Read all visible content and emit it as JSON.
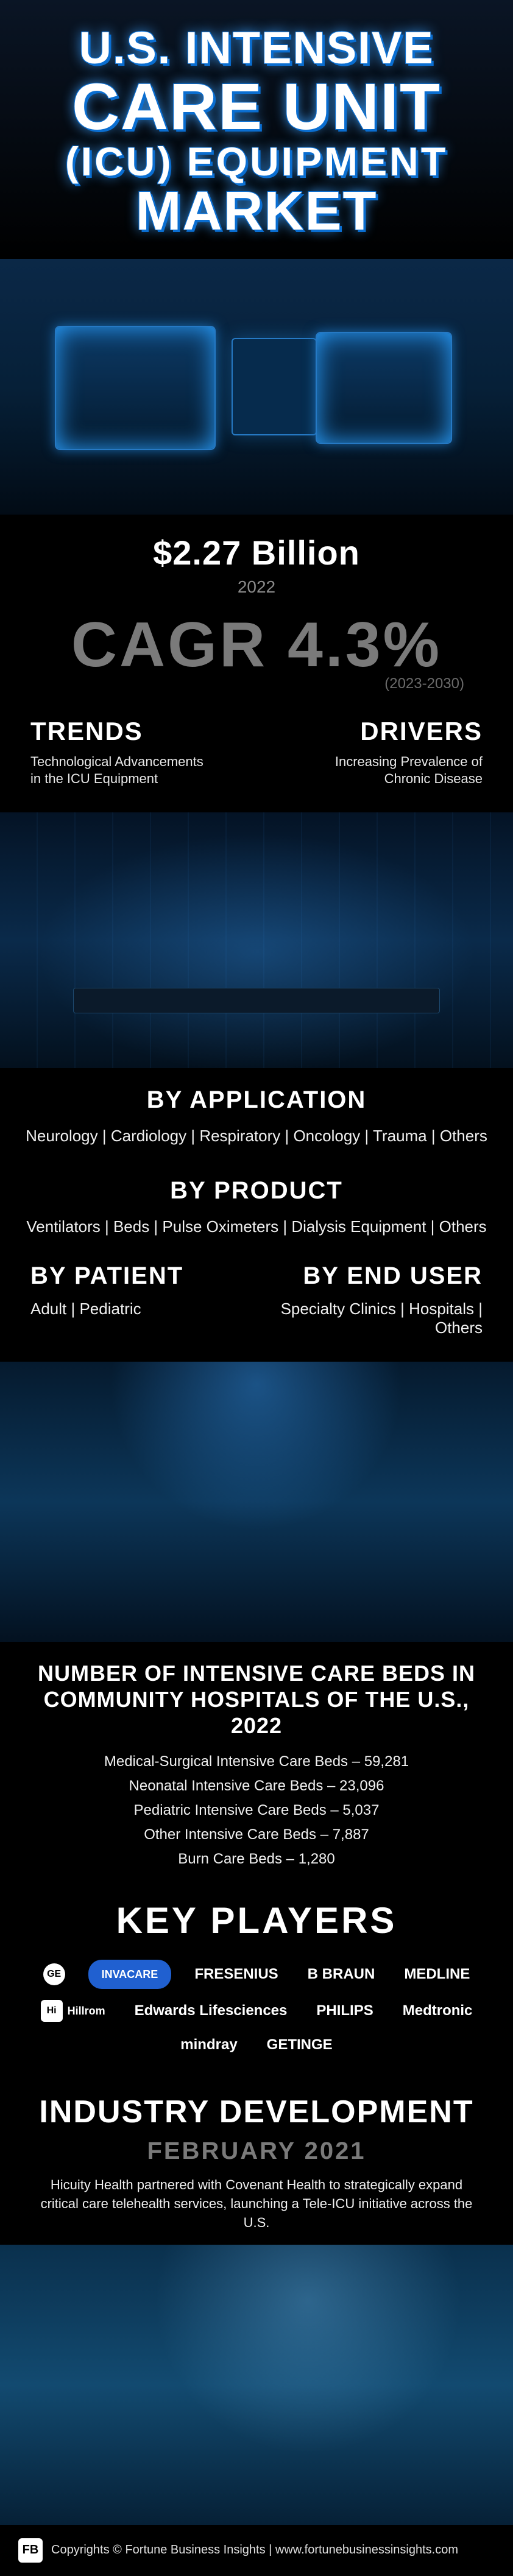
{
  "colors": {
    "background": "#000000",
    "text": "#ffffff",
    "muted": "#7a7a7a",
    "accent": "#0a6ed1",
    "accent_glow": "#3aa0ff",
    "scene_blue_dark": "#062038",
    "scene_blue_light": "#0b2847"
  },
  "title": {
    "line1": "U.S. INTENSIVE",
    "line2": "CARE UNIT",
    "line3": "(ICU) EQUIPMENT",
    "line4": "MARKET"
  },
  "market_size": {
    "value": "$2.27 Billion",
    "year": "2022"
  },
  "cagr": {
    "label": "CAGR 4.3%",
    "range": "(2023-2030)"
  },
  "trends": {
    "head": "TRENDS",
    "text": "Technological Advancements\nin the ICU Equipment"
  },
  "drivers": {
    "head": "DRIVERS",
    "text": "Increasing Prevalence of\nChronic Disease"
  },
  "by_application": {
    "head": "BY APPLICATION",
    "items": "Neurology  |  Cardiology  |  Respiratory  |  Oncology  |  Trauma  |  Others"
  },
  "by_product": {
    "head": "BY PRODUCT",
    "items": "Ventilators  |  Beds  |  Pulse Oximeters  |  Dialysis Equipment  |  Others"
  },
  "by_patient": {
    "head": "BY PATIENT",
    "items": "Adult  |  Pediatric"
  },
  "by_end_user": {
    "head": "BY END USER",
    "items": "Specialty Clinics  |  Hospitals  |  Others"
  },
  "beds": {
    "title": "NUMBER OF INTENSIVE CARE BEDS IN COMMUNITY HOSPITALS OF THE U.S., 2022",
    "rows": [
      "Medical-Surgical Intensive Care Beds – 59,281",
      "Neonatal Intensive Care Beds – 23,096",
      "Pediatric Intensive Care Beds – 5,037",
      "Other Intensive Care Beds – 7,887",
      "Burn Care Beds – 1,280"
    ]
  },
  "players": {
    "head": "KEY PLAYERS",
    "list": [
      {
        "name": "GE",
        "style": "round"
      },
      {
        "name": "INVACARE",
        "style": "pill"
      },
      {
        "name": "FRESENIUS",
        "style": "text"
      },
      {
        "name": "B BRAUN",
        "style": "text"
      },
      {
        "name": "MEDLINE",
        "style": "text"
      },
      {
        "name": "Hillrom",
        "style": "box"
      },
      {
        "name": "Edwards Lifesciences",
        "style": "text"
      },
      {
        "name": "PHILIPS",
        "style": "text"
      },
      {
        "name": "Medtronic",
        "style": "text"
      },
      {
        "name": "mindray",
        "style": "text"
      },
      {
        "name": "GETINGE",
        "style": "text"
      }
    ]
  },
  "development": {
    "head": "INDUSTRY DEVELOPMENT",
    "date": "FEBRUARY 2021",
    "text": "Hicuity Health partnered with Covenant Health to strategically expand critical care telehealth services, launching a Tele-ICU initiative across the U.S."
  },
  "footer": {
    "logo": "FB",
    "text": "Copyrights © Fortune Business Insights | www.fortunebusinessinsights.com"
  }
}
